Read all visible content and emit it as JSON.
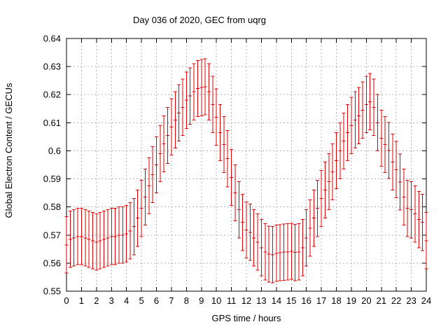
{
  "chart_data": {
    "type": "errorbar",
    "title": "Day 036 of 2020, GEC from uqrg",
    "xlabel": "GPS time / hours",
    "ylabel": "Global Electron Content / GECUs",
    "xlim": [
      0,
      24
    ],
    "ylim": [
      0.55,
      0.64
    ],
    "grid": true,
    "legend": "none",
    "series_color": "#dd0000",
    "grid_color": "#b0b0b0",
    "frame_color": "#000000",
    "x_start_hours": 0,
    "x_step_hours": 0.25,
    "yerr": 0.01,
    "y": [
      0.5665,
      0.5685,
      0.569,
      0.5695,
      0.5695,
      0.569,
      0.5685,
      0.568,
      0.5675,
      0.568,
      0.5685,
      0.569,
      0.5695,
      0.5695,
      0.57,
      0.57,
      0.5705,
      0.5715,
      0.573,
      0.576,
      0.5795,
      0.5835,
      0.5875,
      0.5915,
      0.595,
      0.599,
      0.6025,
      0.6055,
      0.6085,
      0.611,
      0.6135,
      0.6155,
      0.618,
      0.6195,
      0.621,
      0.6222,
      0.6225,
      0.6228,
      0.621,
      0.6165,
      0.612,
      0.6065,
      0.6022,
      0.5972,
      0.5905,
      0.585,
      0.579,
      0.5745,
      0.5718,
      0.571,
      0.569,
      0.5675,
      0.5655,
      0.564,
      0.5632,
      0.563,
      0.5635,
      0.5637,
      0.5639,
      0.564,
      0.5642,
      0.5638,
      0.564,
      0.5655,
      0.569,
      0.5725,
      0.576,
      0.5795,
      0.583,
      0.586,
      0.589,
      0.5925,
      0.5965,
      0.6,
      0.6035,
      0.6065,
      0.609,
      0.611,
      0.6125,
      0.6145,
      0.6165,
      0.6175,
      0.6155,
      0.61,
      0.6045,
      0.6022,
      0.6001,
      0.596,
      0.5933,
      0.5889,
      0.5835,
      0.5795,
      0.579,
      0.5775,
      0.5755,
      0.5745,
      0.568
    ],
    "xticks": [
      0,
      1,
      2,
      3,
      4,
      5,
      6,
      7,
      8,
      9,
      10,
      11,
      12,
      13,
      14,
      15,
      16,
      17,
      18,
      19,
      20,
      21,
      22,
      23,
      24
    ],
    "xticklabels": [
      "0",
      "1",
      "2",
      "3",
      "4",
      "5",
      "6",
      "7",
      "8",
      "9",
      "10",
      "11",
      "12",
      "13",
      "14",
      "15",
      "16",
      "17",
      "18",
      "19",
      "20",
      "21",
      "22",
      "23",
      "24"
    ],
    "yticks": [
      0.55,
      0.56,
      0.57,
      0.58,
      0.59,
      0.6,
      0.61,
      0.62,
      0.63,
      0.64
    ],
    "yticklabels": [
      "0.55",
      "0.56",
      "0.57",
      "0.58",
      "0.59",
      "0.6",
      "0.61",
      "0.62",
      "0.63",
      "0.64"
    ]
  }
}
